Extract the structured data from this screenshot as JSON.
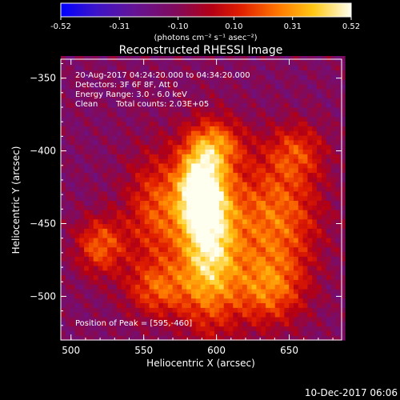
{
  "chart_data": {
    "type": "heatmap",
    "title": "Reconstructed RHESSI Image",
    "xlabel": "Heliocentric X (arcsec)",
    "ylabel": "Heliocentric Y (arcsec)",
    "xlim": [
      493,
      686
    ],
    "ylim": [
      -530,
      -337
    ],
    "x_ticks": [
      500,
      550,
      600,
      650
    ],
    "y_ticks": [
      -350,
      -400,
      -450,
      -500
    ],
    "colorbar": {
      "ticks": [
        "-0.52",
        "-0.31",
        "-0.10",
        "0.10",
        "0.31",
        "0.52"
      ],
      "range": [
        -0.52,
        0.52
      ],
      "unit_label": "(photons cm⁻² s⁻¹ asec⁻²)",
      "colormap": "blue-purple-red-yellow-white"
    },
    "annotations": {
      "time_range": "20-Aug-2017 04:24:20.000 to 04:34:20.000",
      "detectors": "Detectors: 3F 6F 8F, Att 0",
      "energy": "Energy Range: 3.0 - 6.0 keV",
      "clean": "Clean",
      "total_counts": "Total counts: 2.03E+05",
      "peak": "Position of Peak = [595,-460]"
    },
    "peak": {
      "x": 595,
      "y": -460,
      "value": 0.52
    },
    "sources": [
      {
        "x": 595,
        "y": -460,
        "amp": 0.52,
        "sx": 14,
        "sy": 40
      },
      {
        "x": 588,
        "y": -425,
        "amp": 0.36,
        "sx": 10,
        "sy": 18
      },
      {
        "x": 560,
        "y": -440,
        "amp": 0.22,
        "sx": 16,
        "sy": 28
      },
      {
        "x": 640,
        "y": -445,
        "amp": 0.28,
        "sx": 22,
        "sy": 28
      },
      {
        "x": 635,
        "y": -495,
        "amp": 0.25,
        "sx": 18,
        "sy": 18
      },
      {
        "x": 520,
        "y": -465,
        "amp": 0.24,
        "sx": 12,
        "sy": 14
      },
      {
        "x": 560,
        "y": -495,
        "amp": 0.2,
        "sx": 16,
        "sy": 14
      },
      {
        "x": 600,
        "y": -395,
        "amp": 0.18,
        "sx": 14,
        "sy": 12
      },
      {
        "x": 655,
        "y": -400,
        "amp": 0.14,
        "sx": 14,
        "sy": 14
      }
    ],
    "background": -0.12
  },
  "footer_date": "10-Dec-2017 06:06"
}
